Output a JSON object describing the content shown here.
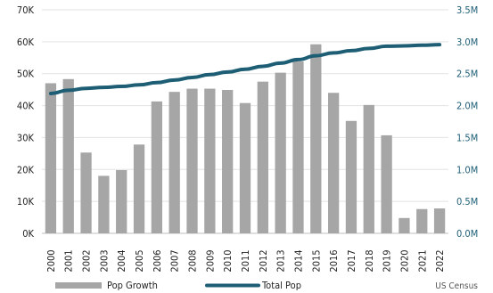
{
  "chart_data": {
    "type": "bar",
    "categories": [
      "2000",
      "2001",
      "2002",
      "2003",
      "2004",
      "2005",
      "2006",
      "2007",
      "2008",
      "2009",
      "2010",
      "2011",
      "2012",
      "2013",
      "2014",
      "2015",
      "2016",
      "2017",
      "2018",
      "2019",
      "2020",
      "2021",
      "2022"
    ],
    "series": [
      {
        "name": "Pop Growth",
        "type": "bar",
        "axis": "left",
        "color": "#a6a6a6",
        "values": [
          47000,
          48300,
          25300,
          18000,
          19800,
          27800,
          41300,
          44300,
          45300,
          45300,
          44900,
          40800,
          47500,
          50300,
          53800,
          59200,
          44000,
          35200,
          40200,
          30700,
          4800,
          7600,
          7800
        ]
      },
      {
        "name": "Total Pop",
        "type": "line",
        "axis": "right",
        "color": "#1d5e75",
        "values": [
          2190000,
          2240000,
          2270000,
          2285000,
          2300000,
          2325000,
          2360000,
          2400000,
          2440000,
          2485000,
          2525000,
          2570000,
          2615000,
          2665000,
          2720000,
          2780000,
          2825000,
          2860000,
          2895000,
          2930000,
          2935000,
          2945000,
          2955000
        ]
      }
    ],
    "left_axis": {
      "ylim": [
        0,
        70000
      ],
      "ticks": [
        0,
        10000,
        20000,
        30000,
        40000,
        50000,
        60000,
        70000
      ],
      "tick_labels": [
        "0K",
        "10K",
        "20K",
        "30K",
        "40K",
        "50K",
        "60K",
        "70K"
      ]
    },
    "right_axis": {
      "ylim": [
        0,
        3500000
      ],
      "ticks": [
        0,
        500000,
        1000000,
        1500000,
        2000000,
        2500000,
        3000000,
        3500000
      ],
      "tick_labels": [
        "0.0M",
        "0.5M",
        "1.0M",
        "1.5M",
        "2.0M",
        "2.5M",
        "3.0M",
        "3.5M"
      ],
      "color": "#1d5e75"
    },
    "grid": true,
    "legend_position": "bottom",
    "source": "US Census"
  }
}
